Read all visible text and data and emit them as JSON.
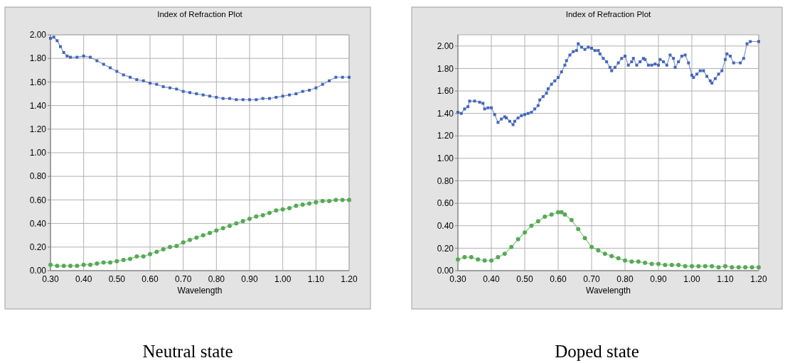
{
  "chart_data": [
    {
      "type": "line",
      "title": "Index of Refraction Plot",
      "xlabel": "Wavelength",
      "annotations": [
        "Neutral state"
      ],
      "xlim": [
        0.3,
        1.2
      ],
      "xticks": [
        {
          "value": 0.3,
          "label": "0.30"
        },
        {
          "value": 0.4,
          "label": "0.40"
        },
        {
          "value": 0.5,
          "label": "0.50"
        },
        {
          "value": 0.6,
          "label": "0.60"
        },
        {
          "value": 0.7,
          "label": "0.70"
        },
        {
          "value": 0.8,
          "label": "0.80"
        },
        {
          "value": 0.9,
          "label": "0.90"
        },
        {
          "value": 1.0,
          "label": "1.00"
        },
        {
          "value": 1.1,
          "label": "1.10"
        },
        {
          "value": 1.2,
          "label": "1.20"
        }
      ],
      "ylim": [
        0,
        2
      ],
      "yticks": [
        {
          "value": 0,
          "label": "0.00"
        },
        {
          "value": 0.2,
          "label": "0.20"
        },
        {
          "value": 0.4,
          "label": "0.40"
        },
        {
          "value": 0.6,
          "label": "0.60"
        },
        {
          "value": 0.8,
          "label": "0.80"
        },
        {
          "value": 1.0,
          "label": "1.00"
        },
        {
          "value": 1.2,
          "label": "1.20"
        },
        {
          "value": 1.4,
          "label": "1.40"
        },
        {
          "value": 1.6,
          "label": "1.60"
        },
        {
          "value": 1.8,
          "label": "1.80"
        },
        {
          "value": 2.0,
          "label": "2.00"
        }
      ],
      "grid": true,
      "line_style": "solid",
      "series": [
        {
          "color": "#4466bb",
          "marker": "square",
          "x": [
            0.3,
            0.31,
            0.32,
            0.33,
            0.34,
            0.35,
            0.36,
            0.38,
            0.4,
            0.42,
            0.44,
            0.46,
            0.48,
            0.5,
            0.52,
            0.54,
            0.56,
            0.58,
            0.6,
            0.62,
            0.64,
            0.66,
            0.68,
            0.7,
            0.72,
            0.74,
            0.76,
            0.78,
            0.8,
            0.82,
            0.84,
            0.86,
            0.88,
            0.9,
            0.92,
            0.94,
            0.96,
            0.98,
            1.0,
            1.02,
            1.04,
            1.06,
            1.08,
            1.1,
            1.12,
            1.14,
            1.16,
            1.18,
            1.2
          ],
          "values": [
            1.97,
            1.98,
            1.95,
            1.9,
            1.85,
            1.82,
            1.81,
            1.81,
            1.82,
            1.81,
            1.78,
            1.75,
            1.72,
            1.69,
            1.66,
            1.64,
            1.62,
            1.61,
            1.59,
            1.58,
            1.56,
            1.55,
            1.54,
            1.52,
            1.51,
            1.5,
            1.49,
            1.48,
            1.47,
            1.46,
            1.46,
            1.45,
            1.45,
            1.45,
            1.45,
            1.46,
            1.46,
            1.47,
            1.48,
            1.49,
            1.5,
            1.52,
            1.53,
            1.55,
            1.58,
            1.61,
            1.64,
            1.64,
            1.64
          ]
        },
        {
          "color": "#55aa55",
          "marker": "circle",
          "x": [
            0.3,
            0.32,
            0.34,
            0.36,
            0.38,
            0.4,
            0.42,
            0.44,
            0.46,
            0.48,
            0.5,
            0.52,
            0.54,
            0.56,
            0.58,
            0.6,
            0.62,
            0.64,
            0.66,
            0.68,
            0.7,
            0.72,
            0.74,
            0.76,
            0.78,
            0.8,
            0.82,
            0.84,
            0.86,
            0.88,
            0.9,
            0.92,
            0.94,
            0.96,
            0.98,
            1.0,
            1.02,
            1.04,
            1.06,
            1.08,
            1.1,
            1.12,
            1.14,
            1.16,
            1.18,
            1.2
          ],
          "values": [
            0.05,
            0.04,
            0.04,
            0.04,
            0.04,
            0.05,
            0.05,
            0.06,
            0.07,
            0.07,
            0.08,
            0.09,
            0.1,
            0.12,
            0.12,
            0.14,
            0.16,
            0.18,
            0.2,
            0.21,
            0.24,
            0.26,
            0.28,
            0.3,
            0.32,
            0.34,
            0.36,
            0.38,
            0.4,
            0.42,
            0.44,
            0.46,
            0.47,
            0.49,
            0.51,
            0.52,
            0.53,
            0.55,
            0.56,
            0.57,
            0.58,
            0.59,
            0.59,
            0.6,
            0.6,
            0.6
          ]
        }
      ]
    },
    {
      "type": "line",
      "title": "Index of Refraction Plot",
      "xlabel": "Wavelength",
      "annotations": [
        "Doped state"
      ],
      "xlim": [
        0.3,
        1.2
      ],
      "xticks": [
        {
          "value": 0.3,
          "label": "0.30"
        },
        {
          "value": 0.4,
          "label": "0.40"
        },
        {
          "value": 0.5,
          "label": "0.50"
        },
        {
          "value": 0.6,
          "label": "0.60"
        },
        {
          "value": 0.7,
          "label": "0.70"
        },
        {
          "value": 0.8,
          "label": "0.80"
        },
        {
          "value": 0.9,
          "label": "0.90"
        },
        {
          "value": 1.0,
          "label": "1.00"
        },
        {
          "value": 1.1,
          "label": "1.10"
        },
        {
          "value": 1.2,
          "label": "1.20"
        }
      ],
      "ylim": [
        0,
        2.1
      ],
      "yticks": [
        {
          "value": 0,
          "label": "0.00"
        },
        {
          "value": 0.2,
          "label": "0.20"
        },
        {
          "value": 0.4,
          "label": "0.40"
        },
        {
          "value": 0.6,
          "label": "0.60"
        },
        {
          "value": 0.8,
          "label": "0.80"
        },
        {
          "value": 1.0,
          "label": "1.00"
        },
        {
          "value": 1.2,
          "label": "1.20"
        },
        {
          "value": 1.4,
          "label": "1.40"
        },
        {
          "value": 1.6,
          "label": "1.60"
        },
        {
          "value": 1.8,
          "label": "1.80"
        },
        {
          "value": 2.0,
          "label": "2.00"
        }
      ],
      "grid": true,
      "line_style": "solid",
      "series": [
        {
          "color": "#4466bb",
          "marker": "square",
          "x": [
            0.3,
            0.31,
            0.32,
            0.33,
            0.335,
            0.35,
            0.365,
            0.375,
            0.38,
            0.39,
            0.4,
            0.41,
            0.42,
            0.43,
            0.44,
            0.445,
            0.455,
            0.465,
            0.47,
            0.48,
            0.49,
            0.5,
            0.51,
            0.52,
            0.53,
            0.54,
            0.545,
            0.555,
            0.565,
            0.57,
            0.58,
            0.59,
            0.6,
            0.61,
            0.62,
            0.625,
            0.635,
            0.645,
            0.655,
            0.66,
            0.67,
            0.68,
            0.69,
            0.7,
            0.71,
            0.72,
            0.725,
            0.735,
            0.745,
            0.755,
            0.76,
            0.77,
            0.78,
            0.79,
            0.8,
            0.81,
            0.82,
            0.825,
            0.835,
            0.845,
            0.855,
            0.86,
            0.87,
            0.88,
            0.89,
            0.9,
            0.905,
            0.915,
            0.925,
            0.935,
            0.945,
            0.95,
            0.96,
            0.97,
            0.98,
            0.99,
            1.0,
            1.005,
            1.015,
            1.025,
            1.035,
            1.045,
            1.055,
            1.06,
            1.07,
            1.08,
            1.09,
            1.1,
            1.105,
            1.115,
            1.125,
            1.145,
            1.155,
            1.165,
            1.175,
            1.2
          ],
          "values": [
            1.41,
            1.4,
            1.44,
            1.46,
            1.51,
            1.51,
            1.5,
            1.49,
            1.44,
            1.45,
            1.45,
            1.39,
            1.32,
            1.35,
            1.37,
            1.36,
            1.33,
            1.3,
            1.33,
            1.36,
            1.38,
            1.39,
            1.4,
            1.41,
            1.44,
            1.47,
            1.52,
            1.55,
            1.58,
            1.62,
            1.66,
            1.69,
            1.72,
            1.77,
            1.83,
            1.87,
            1.92,
            1.95,
            1.96,
            2.02,
            1.99,
            1.97,
            1.99,
            1.98,
            1.96,
            1.96,
            1.93,
            1.89,
            1.86,
            1.81,
            1.78,
            1.81,
            1.85,
            1.89,
            1.91,
            1.83,
            1.86,
            1.89,
            1.83,
            1.86,
            1.89,
            1.88,
            1.83,
            1.83,
            1.84,
            1.83,
            1.88,
            1.86,
            1.83,
            1.92,
            1.89,
            1.81,
            1.86,
            1.91,
            1.92,
            1.85,
            1.74,
            1.72,
            1.75,
            1.78,
            1.78,
            1.73,
            1.69,
            1.67,
            1.71,
            1.75,
            1.78,
            1.88,
            1.93,
            1.91,
            1.85,
            1.85,
            1.89,
            2.02,
            2.04,
            2.04
          ]
        },
        {
          "color": "#55aa55",
          "marker": "circle",
          "x": [
            0.3,
            0.32,
            0.34,
            0.36,
            0.38,
            0.4,
            0.42,
            0.44,
            0.46,
            0.48,
            0.5,
            0.52,
            0.54,
            0.56,
            0.58,
            0.6,
            0.61,
            0.62,
            0.64,
            0.66,
            0.68,
            0.7,
            0.72,
            0.74,
            0.76,
            0.78,
            0.8,
            0.82,
            0.84,
            0.86,
            0.88,
            0.9,
            0.92,
            0.94,
            0.96,
            0.98,
            1.0,
            1.02,
            1.04,
            1.06,
            1.08,
            1.1,
            1.12,
            1.14,
            1.16,
            1.18,
            1.2
          ],
          "values": [
            0.1,
            0.12,
            0.12,
            0.1,
            0.09,
            0.09,
            0.12,
            0.15,
            0.21,
            0.28,
            0.34,
            0.4,
            0.44,
            0.48,
            0.5,
            0.52,
            0.52,
            0.5,
            0.45,
            0.37,
            0.29,
            0.21,
            0.18,
            0.15,
            0.13,
            0.11,
            0.09,
            0.08,
            0.08,
            0.07,
            0.06,
            0.06,
            0.05,
            0.05,
            0.05,
            0.04,
            0.04,
            0.04,
            0.04,
            0.04,
            0.03,
            0.04,
            0.03,
            0.03,
            0.03,
            0.03,
            0.03
          ]
        }
      ]
    }
  ]
}
